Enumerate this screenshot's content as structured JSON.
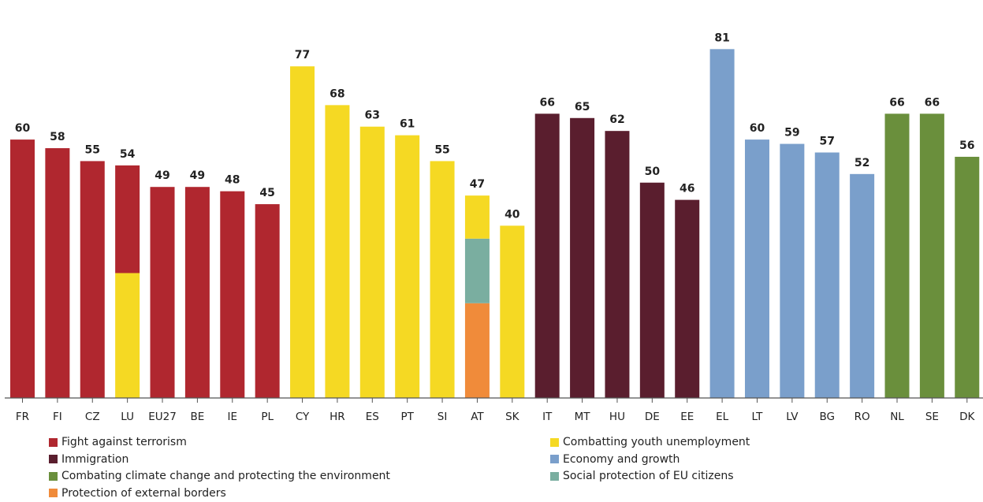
{
  "chart_data": {
    "type": "bar",
    "title": "",
    "xlabel": "",
    "ylabel": "",
    "ylim": [
      0,
      85
    ],
    "grid": false,
    "legend_position": "bottom",
    "categories": [
      "FR",
      "FI",
      "CZ",
      "LU",
      "EU27",
      "BE",
      "IE",
      "PL",
      "CY",
      "HR",
      "ES",
      "PT",
      "SI",
      "AT",
      "SK",
      "IT",
      "MT",
      "HU",
      "DE",
      "EE",
      "EL",
      "LT",
      "LV",
      "BG",
      "RO",
      "NL",
      "SE",
      "DK"
    ],
    "values": [
      60,
      58,
      55,
      54,
      49,
      49,
      48,
      45,
      77,
      68,
      63,
      61,
      55,
      47,
      40,
      66,
      65,
      62,
      50,
      46,
      81,
      60,
      59,
      57,
      52,
      66,
      66,
      56
    ],
    "bar_topics": [
      "terrorism",
      "terrorism",
      "terrorism",
      "terrorism",
      "terrorism",
      "terrorism",
      "terrorism",
      "terrorism",
      "youth",
      "youth",
      "youth",
      "youth",
      "youth",
      "youth",
      "youth",
      "immigration",
      "immigration",
      "immigration",
      "immigration",
      "immigration",
      "economy",
      "economy",
      "economy",
      "economy",
      "economy",
      "climate",
      "climate",
      "climate"
    ],
    "shared_segments": {
      "LU": [
        {
          "topic": "youth",
          "value": 29
        },
        {
          "topic": "terrorism",
          "value": 25
        }
      ],
      "AT": [
        {
          "topic": "borders",
          "value": 22
        },
        {
          "topic": "social",
          "value": 15
        },
        {
          "topic": "youth",
          "value": 10
        }
      ]
    },
    "legend": [
      {
        "key": "terrorism",
        "label": "Fight against terrorism",
        "color": "#b0272f"
      },
      {
        "key": "youth",
        "label": "Combatting youth unemployment",
        "color": "#f5d923"
      },
      {
        "key": "immigration",
        "label": "Immigration",
        "color": "#5a1e2e"
      },
      {
        "key": "economy",
        "label": "Economy and growth",
        "color": "#7a9fcb"
      },
      {
        "key": "climate",
        "label": "Combating climate change and protecting the environment",
        "color": "#6a8f3c"
      },
      {
        "key": "social",
        "label": "Social protection of EU citizens",
        "color": "#7aaea0"
      },
      {
        "key": "borders",
        "label": "Protection of external borders",
        "color": "#f08b3a"
      }
    ]
  }
}
